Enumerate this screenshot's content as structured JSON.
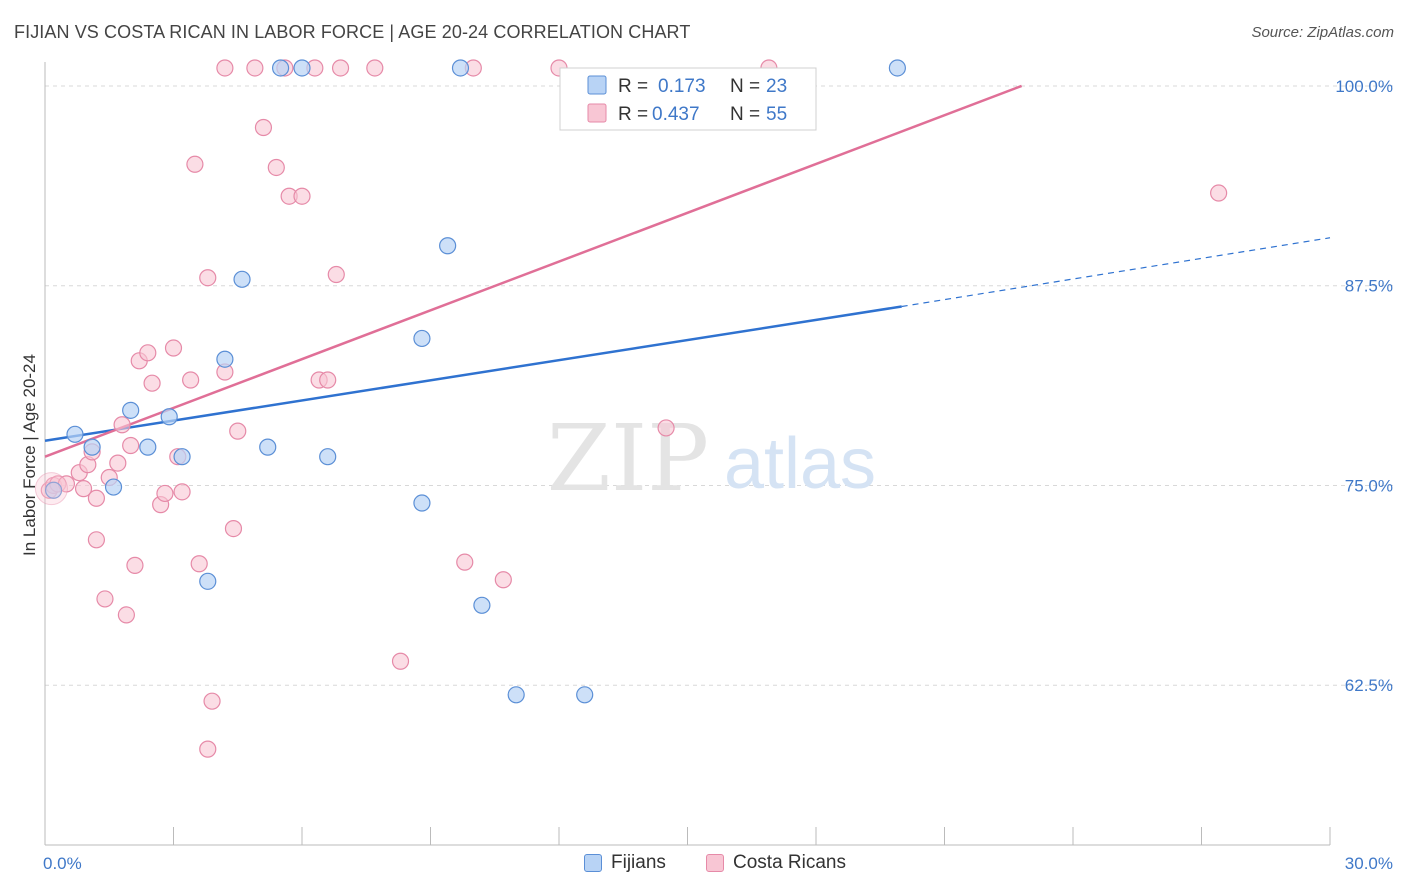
{
  "header": {
    "title": "FIJIAN VS COSTA RICAN IN LABOR FORCE | AGE 20-24 CORRELATION CHART",
    "source": "Source: ZipAtlas.com"
  },
  "watermark": {
    "zip": "ZIP",
    "atlas": "atlas"
  },
  "colors": {
    "fijians_fill": "#b8d3f5",
    "fijians_stroke": "#5b8fd6",
    "fijians_line": "#2f72d0",
    "costa_fill": "#f8c6d4",
    "costa_stroke": "#e68aa8",
    "costa_line": "#e06f97",
    "tick_text": "#3f78c8",
    "grid": "#d8d8d8"
  },
  "legend": {
    "rows": [
      {
        "r_label": "R =",
        "r_value": "0.173",
        "n_label": "N =",
        "n_value": "23"
      },
      {
        "r_label": "R =",
        "r_value": "0.437",
        "n_label": "N =",
        "n_value": "55"
      }
    ],
    "bottom": [
      "Fijians",
      "Costa Ricans"
    ]
  },
  "chart_data": {
    "type": "scatter",
    "title": "FIJIAN VS COSTA RICAN IN LABOR FORCE | AGE 20-24 CORRELATION CHART",
    "xlabel": "",
    "ylabel": "In Labor Force | Age 20-24",
    "xlim": [
      0,
      30
    ],
    "ylim": [
      52.5,
      101.5
    ],
    "x_tick_labels": [
      "0.0%",
      "30.0%"
    ],
    "y_ticks": [
      62.5,
      75.0,
      87.5,
      100.0
    ],
    "y_tick_labels": [
      "62.5%",
      "75.0%",
      "87.5%",
      "100.0%"
    ],
    "series": [
      {
        "name": "Fijians",
        "R": 0.173,
        "N": 23,
        "points": [
          [
            0.2,
            74.7
          ],
          [
            0.7,
            78.2
          ],
          [
            1.1,
            77.4
          ],
          [
            1.6,
            74.9
          ],
          [
            2.0,
            79.7
          ],
          [
            2.4,
            77.4
          ],
          [
            2.9,
            79.3
          ],
          [
            3.2,
            76.8
          ],
          [
            3.8,
            69.0
          ],
          [
            4.2,
            82.9
          ],
          [
            4.6,
            87.9
          ],
          [
            5.2,
            77.4
          ],
          [
            5.5,
            100.0
          ],
          [
            6.0,
            100.0
          ],
          [
            6.6,
            76.8
          ],
          [
            8.8,
            73.9
          ],
          [
            8.8,
            84.2
          ],
          [
            9.4,
            90.0
          ],
          [
            9.7,
            100.0
          ],
          [
            10.2,
            67.5
          ],
          [
            11.0,
            61.9
          ],
          [
            12.6,
            61.9
          ],
          [
            19.9,
            100.0
          ]
        ],
        "trend": {
          "x0": 0,
          "y0": 77.8,
          "x1": 20.0,
          "y1": 86.2,
          "dashed_to_x": 30,
          "dashed_to_y": 90.5
        }
      },
      {
        "name": "Costa Ricans",
        "R": 0.437,
        "N": 55,
        "points": [
          [
            0.1,
            74.7
          ],
          [
            0.2,
            75.0
          ],
          [
            0.3,
            75.1
          ],
          [
            0.5,
            75.1
          ],
          [
            0.8,
            75.8
          ],
          [
            0.9,
            74.8
          ],
          [
            1.0,
            76.3
          ],
          [
            1.1,
            77.1
          ],
          [
            1.2,
            74.2
          ],
          [
            1.2,
            71.6
          ],
          [
            1.4,
            67.9
          ],
          [
            1.5,
            75.5
          ],
          [
            1.7,
            76.4
          ],
          [
            1.8,
            78.8
          ],
          [
            1.9,
            66.9
          ],
          [
            2.0,
            77.5
          ],
          [
            2.1,
            70.0
          ],
          [
            2.2,
            82.8
          ],
          [
            2.4,
            83.3
          ],
          [
            2.5,
            81.4
          ],
          [
            2.7,
            73.8
          ],
          [
            2.8,
            74.5
          ],
          [
            3.0,
            83.6
          ],
          [
            3.1,
            76.8
          ],
          [
            3.2,
            74.6
          ],
          [
            3.4,
            81.6
          ],
          [
            3.5,
            95.1
          ],
          [
            3.6,
            70.1
          ],
          [
            3.8,
            88.0
          ],
          [
            3.8,
            58.5
          ],
          [
            3.9,
            61.5
          ],
          [
            4.2,
            82.1
          ],
          [
            4.2,
            100.0
          ],
          [
            4.4,
            72.3
          ],
          [
            4.5,
            78.4
          ],
          [
            4.9,
            100.0
          ],
          [
            5.1,
            97.4
          ],
          [
            5.4,
            94.9
          ],
          [
            5.6,
            100.0
          ],
          [
            5.7,
            93.1
          ],
          [
            6.0,
            93.1
          ],
          [
            6.3,
            100.0
          ],
          [
            6.4,
            81.6
          ],
          [
            6.6,
            81.6
          ],
          [
            6.8,
            88.2
          ],
          [
            6.9,
            100.0
          ],
          [
            7.7,
            100.0
          ],
          [
            8.3,
            64.0
          ],
          [
            9.8,
            70.2
          ],
          [
            10.0,
            100.0
          ],
          [
            10.7,
            69.1
          ],
          [
            12.0,
            100.0
          ],
          [
            14.5,
            78.6
          ],
          [
            16.9,
            100.0
          ],
          [
            27.4,
            93.3
          ]
        ],
        "trend": {
          "x0": 0,
          "y0": 76.8,
          "x1": 22.8,
          "y1": 100.0
        }
      }
    ]
  }
}
